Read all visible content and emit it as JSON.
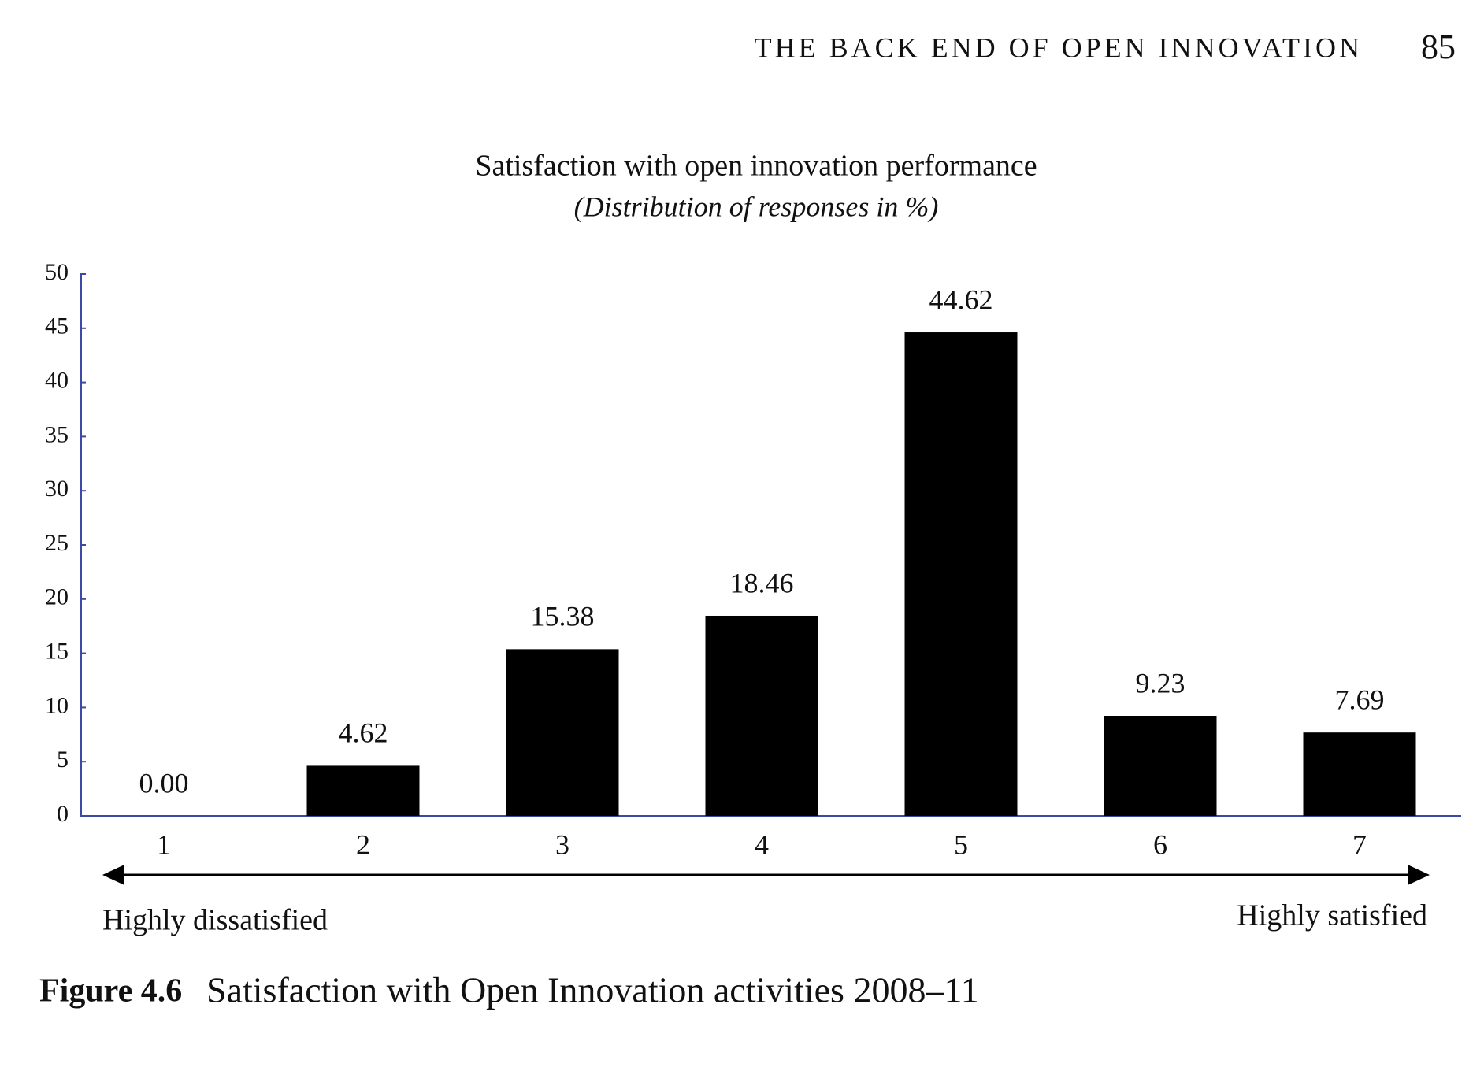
{
  "header": {
    "title": "THE BACK END OF OPEN INNOVATION",
    "page": "85"
  },
  "chart_data": {
    "type": "bar",
    "title": "Satisfaction with open innovation performance",
    "subtitle": "(Distribution of responses in %)",
    "categories": [
      "1",
      "2",
      "3",
      "4",
      "5",
      "6",
      "7"
    ],
    "values": [
      0,
      4.62,
      15.38,
      18.46,
      44.62,
      9.23,
      7.69
    ],
    "value_labels": [
      "0.00",
      "4.62",
      "15.38",
      "18.46",
      "44.62",
      "9.23",
      "7.69"
    ],
    "color": "#000000",
    "ylim": [
      0,
      50
    ],
    "yticks": [
      0,
      5,
      10,
      15,
      20,
      25,
      30,
      35,
      40,
      45,
      50
    ],
    "axis_color": "#3b4aa6",
    "annotations": [
      "Highly dissatisfied",
      "Highly satisfied"
    ]
  },
  "caption": {
    "label": "Figure 4.6",
    "text": "Satisfaction with Open Innovation activities 2008–11"
  }
}
